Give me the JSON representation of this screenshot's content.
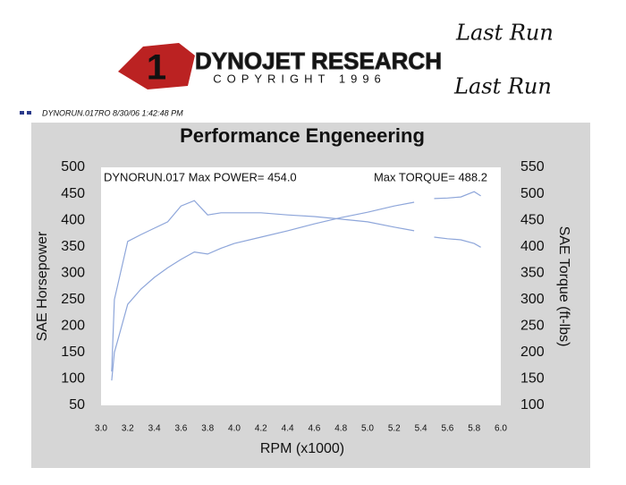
{
  "header": {
    "brand": "DYNOJET RESEARCH",
    "copyright": "COPYRIGHT 1996",
    "run_info": "DYNORUN.017RO  8/30/06 1:42:48 PM",
    "note_1": "Last Run",
    "note_2": "Last Run"
  },
  "chart_data": {
    "type": "line",
    "title": "Performance Engeneering",
    "x_label": "RPM (x1000)",
    "y_label": "SAE Horsepower",
    "y2_label": "SAE Torque (ft-lbs)",
    "annotations": [
      "DYNORUN.017  Max POWER= 454.0",
      "Max TORQUE= 488.2"
    ],
    "x": [
      3.08,
      3.1,
      3.2,
      3.3,
      3.4,
      3.5,
      3.6,
      3.7,
      3.8,
      3.9,
      4.0,
      4.2,
      4.4,
      4.6,
      4.8,
      5.0,
      5.2,
      5.35,
      5.4,
      5.5,
      5.6,
      5.7,
      5.8,
      5.85
    ],
    "series": [
      {
        "color": "#8ea6da",
        "values": [
          97,
          150,
          241,
          270,
          292,
          310,
          326,
          340,
          336,
          347,
          356,
          368,
          380,
          393,
          405,
          415,
          427,
          434,
          null,
          441,
          442,
          444,
          454,
          446
        ]
      },
      {
        "color": "#8ea6da",
        "axis": "y2",
        "values": [
          164,
          300,
          410,
          423,
          435,
          447,
          477,
          487,
          460,
          464,
          464,
          464,
          460,
          457,
          452,
          447,
          437,
          430,
          null,
          418,
          415,
          413,
          406,
          399
        ]
      }
    ],
    "xlim": [
      3.0,
      6.0
    ],
    "xticks": [
      {
        "value": 3,
        "label": "3.0"
      },
      3.2,
      3.4,
      3.6,
      3.8,
      {
        "value": 4,
        "label": "4.0"
      },
      4.2,
      4.4,
      4.6,
      4.8,
      {
        "value": 5,
        "label": "5.0"
      },
      5.2,
      5.4,
      5.6,
      5.8,
      {
        "value": 6,
        "label": "6.0"
      }
    ],
    "ylim": [
      50,
      500
    ],
    "yticks": [
      50,
      100,
      150,
      200,
      250,
      300,
      350,
      400,
      450,
      500
    ],
    "y2lim": [
      100,
      550
    ],
    "y2ticks": [
      100,
      150,
      200,
      250,
      300,
      350,
      400,
      450,
      500,
      550
    ],
    "grid": false
  }
}
